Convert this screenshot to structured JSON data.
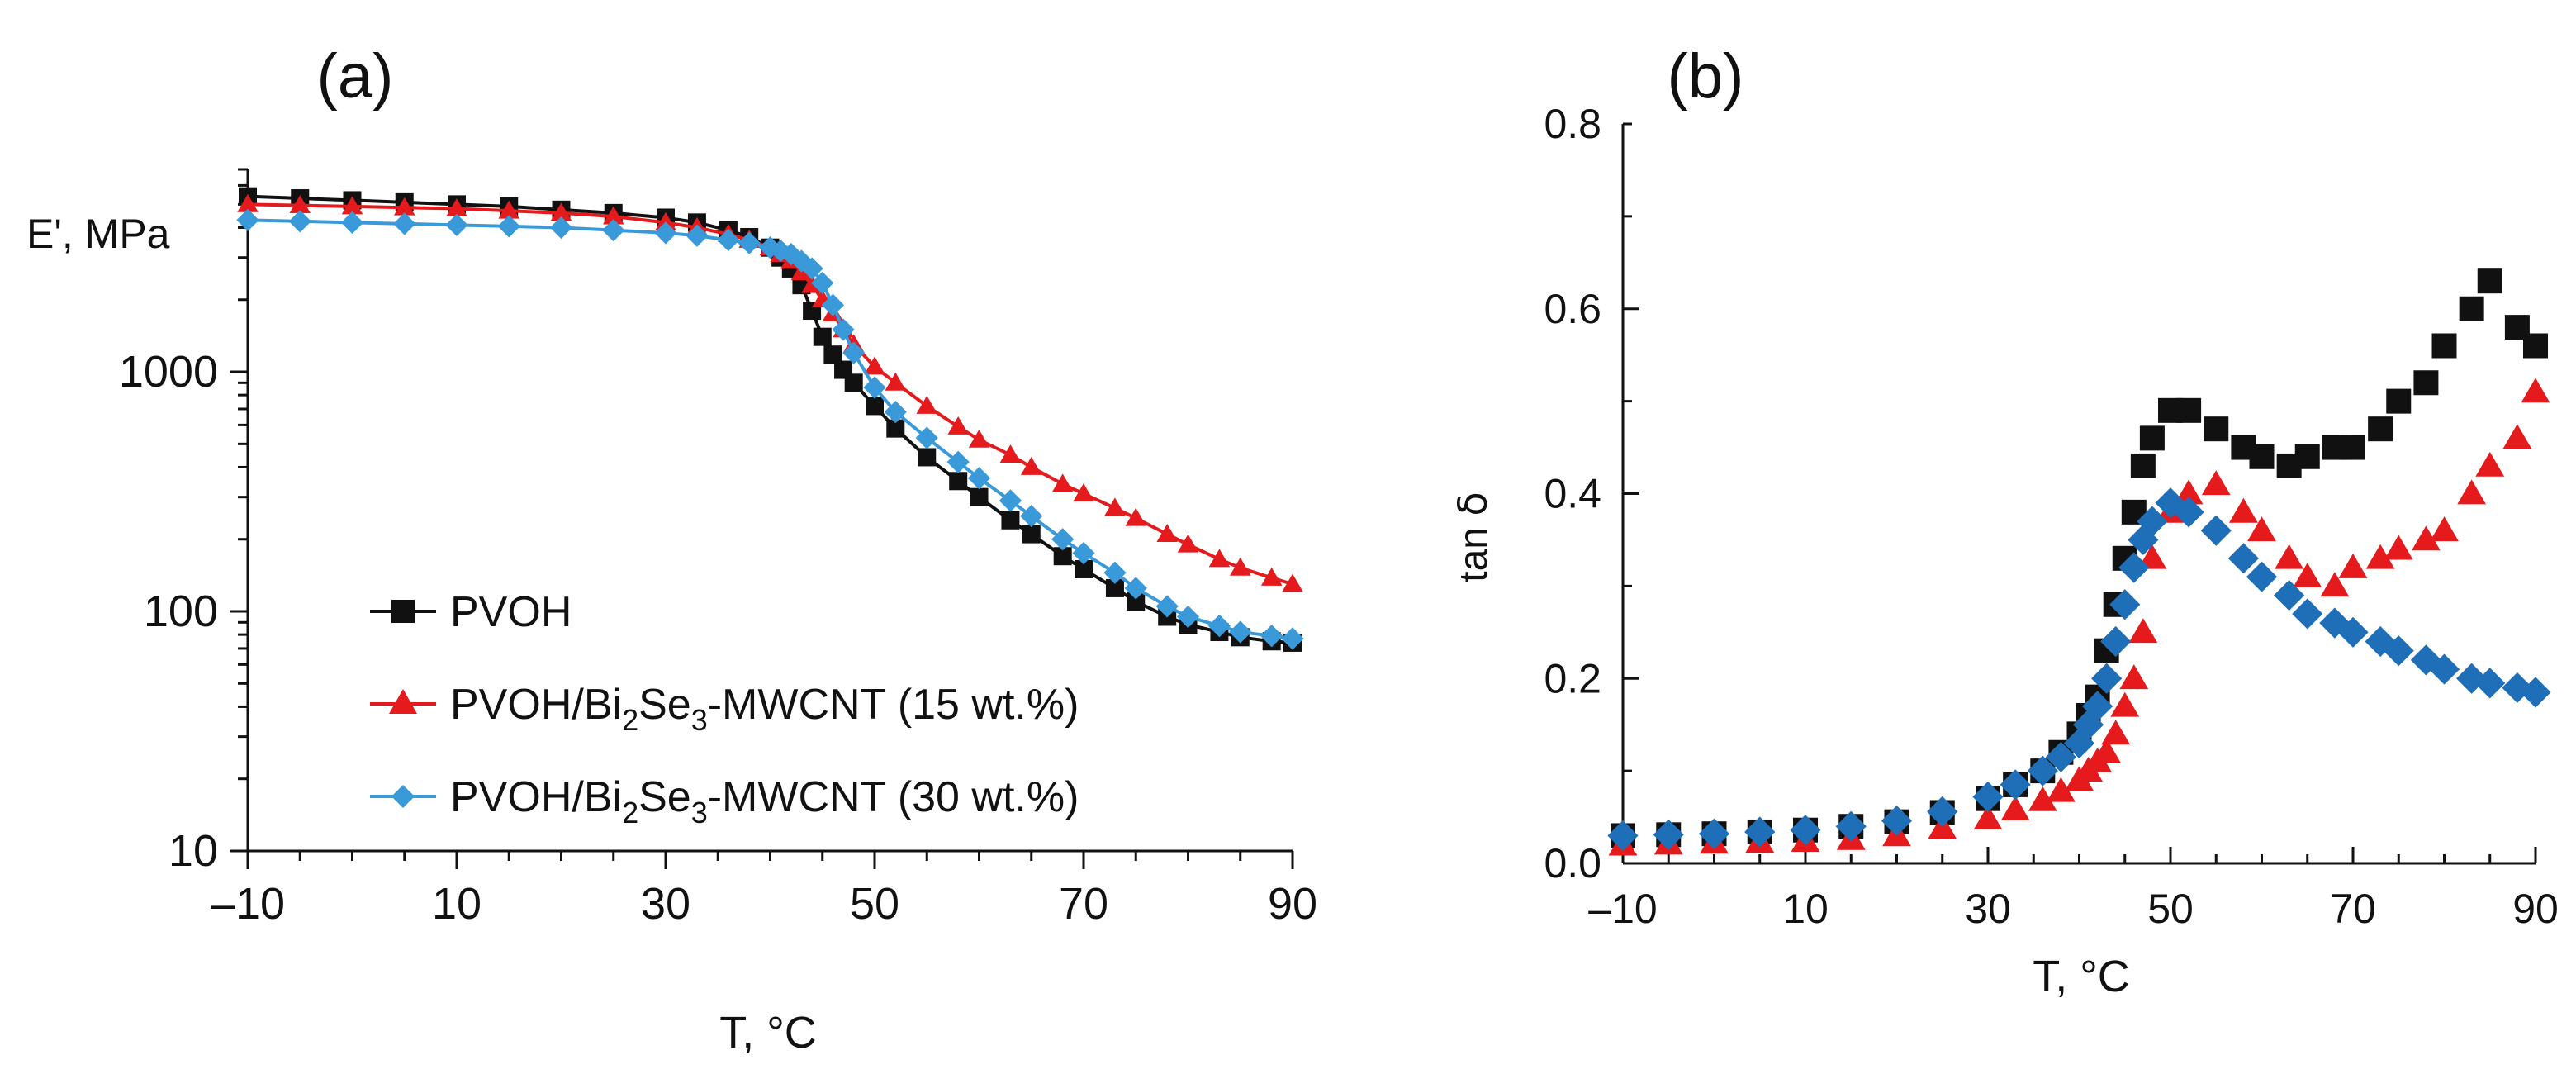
{
  "chart_data": [
    {
      "type": "line",
      "panel_label": "(a)",
      "ylabel": "E', MPa",
      "xlabel": "T, ",
      "xlabel_unit": "°C",
      "yscale": "log",
      "xlim": [
        -10,
        90
      ],
      "ylim": [
        10,
        7000
      ],
      "x_ticks": [
        -10,
        10,
        30,
        50,
        70,
        90
      ],
      "x_tick_labels": [
        "–10",
        "10",
        "30",
        "50",
        "70",
        "90"
      ],
      "y_ticks": [
        10,
        100,
        1000
      ],
      "y_tick_labels": [
        "10",
        "100",
        "1000"
      ],
      "legend_position": "lower-left",
      "x": [
        -10,
        -5,
        0,
        5,
        10,
        15,
        20,
        25,
        30,
        33,
        36,
        38,
        40,
        41,
        42,
        43,
        44,
        45,
        46,
        47,
        48,
        50,
        52,
        55,
        58,
        60,
        63,
        65,
        68,
        70,
        73,
        75,
        78,
        80,
        83,
        85,
        88,
        90
      ],
      "series": [
        {
          "name": "PVOH",
          "legend": {
            "pre": "PVOH"
          },
          "color": "#111111",
          "marker": "square",
          "values": [
            5400,
            5300,
            5200,
            5100,
            5000,
            4900,
            4750,
            4600,
            4400,
            4200,
            3900,
            3650,
            3300,
            3000,
            2700,
            2300,
            1800,
            1400,
            1180,
            1020,
            900,
            720,
            580,
            440,
            350,
            300,
            240,
            210,
            170,
            150,
            125,
            110,
            95,
            88,
            82,
            78,
            75,
            74
          ]
        },
        {
          "name": "PVOH/Bi2Se3-MWCNT (15 wt.%)",
          "legend": {
            "pre": "PVOH/Bi",
            "sub1": "2",
            "mid": "Se",
            "sub2": "3",
            "post": "-MWCNT (15 wt.%)"
          },
          "color": "#e41a1c",
          "marker": "triangle",
          "values": [
            5000,
            4950,
            4900,
            4850,
            4800,
            4700,
            4600,
            4450,
            4200,
            4000,
            3750,
            3550,
            3300,
            3100,
            2900,
            2600,
            2300,
            2000,
            1750,
            1500,
            1300,
            1050,
            900,
            720,
            590,
            520,
            450,
            400,
            340,
            310,
            270,
            245,
            210,
            190,
            165,
            152,
            138,
            130
          ]
        },
        {
          "name": "PVOH/Bi2Se3-MWCNT (30 wt.%)",
          "legend": {
            "pre": "PVOH/Bi",
            "sub1": "2",
            "mid": "Se",
            "sub2": "3",
            "post": "-MWCNT (30 wt.%)"
          },
          "color": "#3a9ad9",
          "marker": "diamond",
          "values": [
            4300,
            4250,
            4200,
            4150,
            4100,
            4050,
            4000,
            3900,
            3800,
            3700,
            3550,
            3450,
            3300,
            3200,
            3100,
            2900,
            2700,
            2350,
            1900,
            1500,
            1200,
            860,
            680,
            530,
            420,
            360,
            290,
            250,
            200,
            175,
            145,
            125,
            105,
            95,
            87,
            82,
            79,
            77
          ]
        }
      ]
    },
    {
      "type": "scatter",
      "panel_label": "(b)",
      "ylabel": "tan ",
      "ylabel_symbol": "δ",
      "xlabel": "T, ",
      "xlabel_unit": "°C",
      "xlim": [
        -10,
        90
      ],
      "ylim": [
        0,
        0.8
      ],
      "x_ticks": [
        -10,
        10,
        30,
        50,
        70,
        90
      ],
      "x_tick_labels": [
        "–10",
        "10",
        "30",
        "50",
        "70",
        "90"
      ],
      "y_ticks": [
        0,
        0.2,
        0.4,
        0.6,
        0.8
      ],
      "y_tick_labels": [
        "0.0",
        "0.2",
        "0.4",
        "0.6",
        "0.8"
      ],
      "x": [
        -10,
        -5,
        0,
        5,
        10,
        15,
        20,
        25,
        30,
        33,
        36,
        38,
        40,
        41,
        42,
        43,
        44,
        45,
        46,
        47,
        48,
        50,
        52,
        55,
        58,
        60,
        63,
        65,
        68,
        70,
        73,
        75,
        78,
        80,
        83,
        85,
        88,
        90
      ],
      "series": [
        {
          "name": "PVOH",
          "color": "#111111",
          "marker": "square",
          "values": [
            0.03,
            0.031,
            0.032,
            0.034,
            0.036,
            0.04,
            0.045,
            0.055,
            0.07,
            0.085,
            0.1,
            0.12,
            0.14,
            0.16,
            0.18,
            0.23,
            0.28,
            0.33,
            0.38,
            0.43,
            0.46,
            0.49,
            0.49,
            0.47,
            0.45,
            0.44,
            0.43,
            0.44,
            0.45,
            0.45,
            0.47,
            0.5,
            0.52,
            0.56,
            0.6,
            0.63,
            0.58,
            0.56
          ]
        },
        {
          "name": "PVOH/Bi2Se3-MWCNT (15 wt.%)",
          "color": "#e41a1c",
          "marker": "triangle",
          "values": [
            0.02,
            0.021,
            0.022,
            0.023,
            0.024,
            0.026,
            0.03,
            0.038,
            0.048,
            0.058,
            0.068,
            0.078,
            0.09,
            0.1,
            0.11,
            0.12,
            0.14,
            0.17,
            0.2,
            0.25,
            0.33,
            0.38,
            0.4,
            0.41,
            0.38,
            0.36,
            0.33,
            0.31,
            0.3,
            0.32,
            0.33,
            0.34,
            0.35,
            0.36,
            0.4,
            0.43,
            0.46,
            0.51
          ]
        },
        {
          "name": "PVOH/Bi2Se3-MWCNT (30 wt.%)",
          "color": "#1f6fb8",
          "marker": "diamond",
          "values": [
            0.03,
            0.031,
            0.032,
            0.034,
            0.036,
            0.04,
            0.046,
            0.056,
            0.072,
            0.085,
            0.1,
            0.115,
            0.13,
            0.15,
            0.17,
            0.2,
            0.24,
            0.28,
            0.32,
            0.35,
            0.37,
            0.39,
            0.38,
            0.36,
            0.33,
            0.31,
            0.29,
            0.27,
            0.26,
            0.25,
            0.24,
            0.23,
            0.22,
            0.21,
            0.2,
            0.195,
            0.19,
            0.185
          ]
        }
      ]
    }
  ]
}
